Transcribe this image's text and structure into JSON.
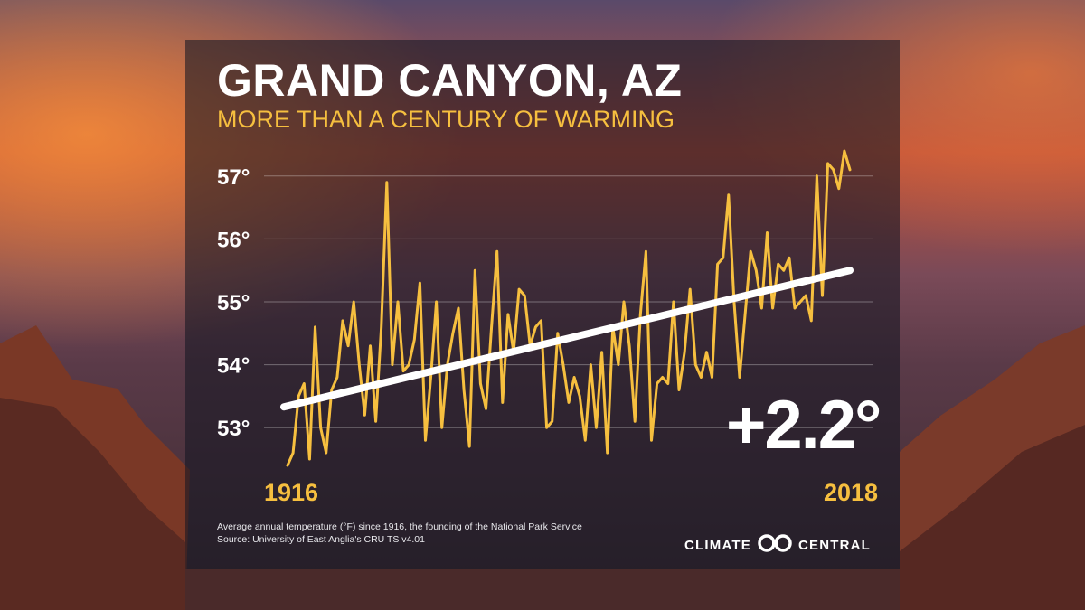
{
  "header": {
    "title": "GRAND CANYON, AZ",
    "subtitle": "MORE THAN A CENTURY OF WARMING"
  },
  "change_label": "+2.2°",
  "footer": {
    "note": "Average annual temperature (°F) since 1916, the founding of the National Park Service",
    "source": "Source: University of East Anglia's CRU TS v4.01"
  },
  "logo": {
    "left": "CLIMATE",
    "right": "CENTRAL",
    "icon": "climate-central-logo-icon"
  },
  "colors": {
    "series": "#f6bf3f",
    "trend": "#ffffff",
    "title": "#ffffff",
    "accent": "#f6bf3f"
  },
  "chart_data": {
    "type": "line",
    "xlabel": "",
    "ylabel": "",
    "x_start": "1916",
    "x_end": "2018",
    "xlim": [
      1916,
      2018
    ],
    "ylim": [
      52.4,
      57.5
    ],
    "yticks": [
      53,
      54,
      55,
      56,
      57
    ],
    "ytick_labels": [
      "53°",
      "54°",
      "55°",
      "56°",
      "57°"
    ],
    "grid": true,
    "series": [
      {
        "values": [
          52.4,
          52.6,
          53.5,
          53.7,
          52.5,
          54.6,
          53.0,
          52.6,
          53.6,
          53.8,
          54.7,
          54.3,
          55.0,
          54.0,
          53.2,
          54.3,
          53.1,
          54.6,
          56.9,
          54.0,
          55.0,
          53.9,
          54.0,
          54.4,
          55.3,
          52.8,
          53.8,
          55.0,
          53.0,
          54.0,
          54.5,
          54.9,
          53.6,
          52.7,
          55.5,
          53.7,
          53.3,
          54.6,
          55.8,
          53.4,
          54.8,
          54.2,
          55.2,
          55.1,
          54.3,
          54.6,
          54.7,
          53.0,
          53.1,
          54.5,
          54.0,
          53.4,
          53.8,
          53.5,
          52.8,
          54.0,
          53.0,
          54.2,
          52.6,
          54.6,
          54.0,
          55.0,
          54.3,
          53.1,
          54.8,
          55.8,
          52.8,
          53.7,
          53.8,
          53.7,
          55.0,
          53.6,
          54.2,
          55.2,
          54.0,
          53.8,
          54.2,
          53.8,
          55.6,
          55.7,
          56.7,
          55.0,
          53.8,
          54.8,
          55.8,
          55.5,
          54.9,
          56.1,
          54.9,
          55.6,
          55.5,
          55.7,
          54.9,
          55.0,
          55.1,
          54.7,
          57.0,
          55.1,
          57.2,
          57.1,
          56.8,
          57.4,
          57.1
        ]
      }
    ],
    "trend": {
      "start": 53.33,
      "end": 55.5
    }
  }
}
